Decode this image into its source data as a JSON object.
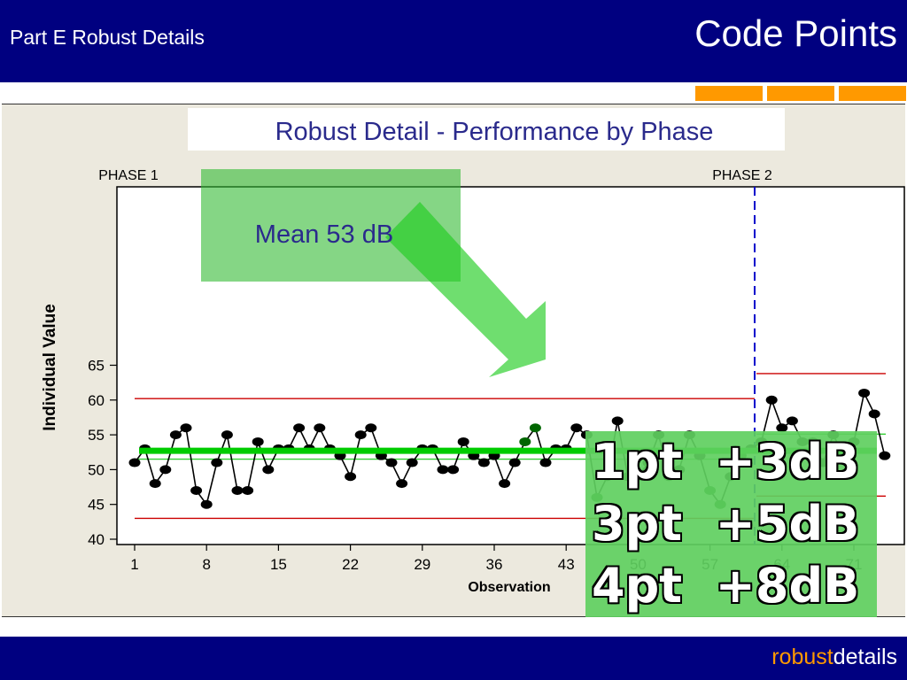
{
  "header": {
    "section_title": "Part E Robust Details",
    "slide_title": "Code Points"
  },
  "footer": {
    "brand_part1": "robust",
    "brand_part2": "details"
  },
  "accent_colors": {
    "header_bg": "#000080",
    "orange": "#ff9900",
    "mean_line": "#00cc00",
    "limit_line": "#cc0000",
    "phase_divider": "#0000cc"
  },
  "chart_title": "Robust Detail - Performance by Phase",
  "mean_callout": "Mean 53 dB",
  "callout_lines": [
    "1pt  +3dB",
    "3pt  +5dB",
    "4pt  +8dB"
  ],
  "chart_data": {
    "type": "line",
    "xlabel": "Observation",
    "ylabel": "Individual Value",
    "ylim": [
      40,
      65
    ],
    "yticks": [
      40,
      45,
      50,
      55,
      60,
      65
    ],
    "xticks": [
      1,
      8,
      15,
      22,
      29,
      36,
      43,
      50,
      57,
      64,
      71
    ],
    "phase_labels": [
      "PHASE 1",
      "PHASE 2"
    ],
    "phase_split_after": 61,
    "values": [
      51,
      53,
      48,
      50,
      55,
      56,
      47,
      45,
      51,
      55,
      47,
      47,
      54,
      50,
      53,
      53,
      56,
      53,
      56,
      53,
      52,
      49,
      55,
      56,
      52,
      51,
      48,
      51,
      53,
      53,
      50,
      50,
      54,
      52,
      51,
      52,
      48,
      51,
      54,
      56,
      51,
      53,
      53,
      56,
      55,
      46,
      49,
      57,
      49,
      49,
      51,
      55,
      49,
      50,
      55,
      52,
      47,
      45,
      49,
      52,
      53,
      54,
      60,
      56,
      57,
      54,
      54,
      51,
      55,
      52,
      54,
      61,
      58,
      52
    ],
    "highlighted_points": [
      39,
      40,
      46,
      57,
      58,
      60
    ],
    "phase1": {
      "mean": 52.7,
      "ucl": 60.2,
      "lcl": 43.0,
      "inner_line": 51.5
    },
    "phase2": {
      "ucl": 63.8,
      "lcl": 46.2,
      "inner_line": 55.1
    },
    "grand_mean": 52.7,
    "grid": false
  }
}
